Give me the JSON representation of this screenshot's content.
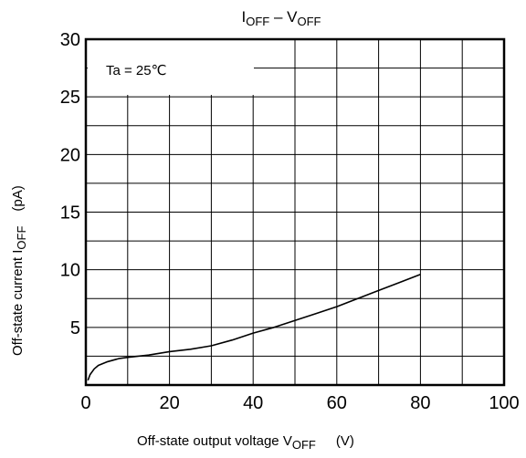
{
  "chart_data": {
    "type": "line",
    "title": {
      "main1": "I",
      "sub1": "OFF",
      "dash": " – ",
      "main2": "V",
      "sub2": "OFF"
    },
    "xlabel": {
      "text": "Off-state output voltage V",
      "sub": "OFF",
      "unit": "(V)"
    },
    "ylabel": {
      "text": "Off-state current  I",
      "sub": "OFF",
      "unit": "(pA)"
    },
    "annotation": "Ta = 25℃",
    "xlim": [
      0,
      100
    ],
    "ylim": [
      0,
      30
    ],
    "x_ticks": [
      0,
      20,
      40,
      60,
      80,
      100
    ],
    "y_ticks": [
      5,
      10,
      15,
      20,
      25,
      30
    ],
    "x_tick_labels": [
      "0",
      "20",
      "40",
      "60",
      "80",
      "100"
    ],
    "y_tick_labels": [
      "5",
      "10",
      "15",
      "20",
      "25",
      "30"
    ],
    "grid": true,
    "series": [
      {
        "x": [
          0.5,
          1,
          2,
          3,
          5,
          8,
          10,
          15,
          20,
          25,
          30,
          35,
          40,
          45,
          50,
          55,
          60,
          65,
          70,
          75,
          80
        ],
        "y": [
          0.4,
          0.9,
          1.4,
          1.7,
          2.0,
          2.3,
          2.4,
          2.6,
          2.9,
          3.1,
          3.4,
          3.9,
          4.5,
          5.0,
          5.6,
          6.2,
          6.8,
          7.5,
          8.2,
          8.9,
          9.6
        ]
      }
    ]
  }
}
